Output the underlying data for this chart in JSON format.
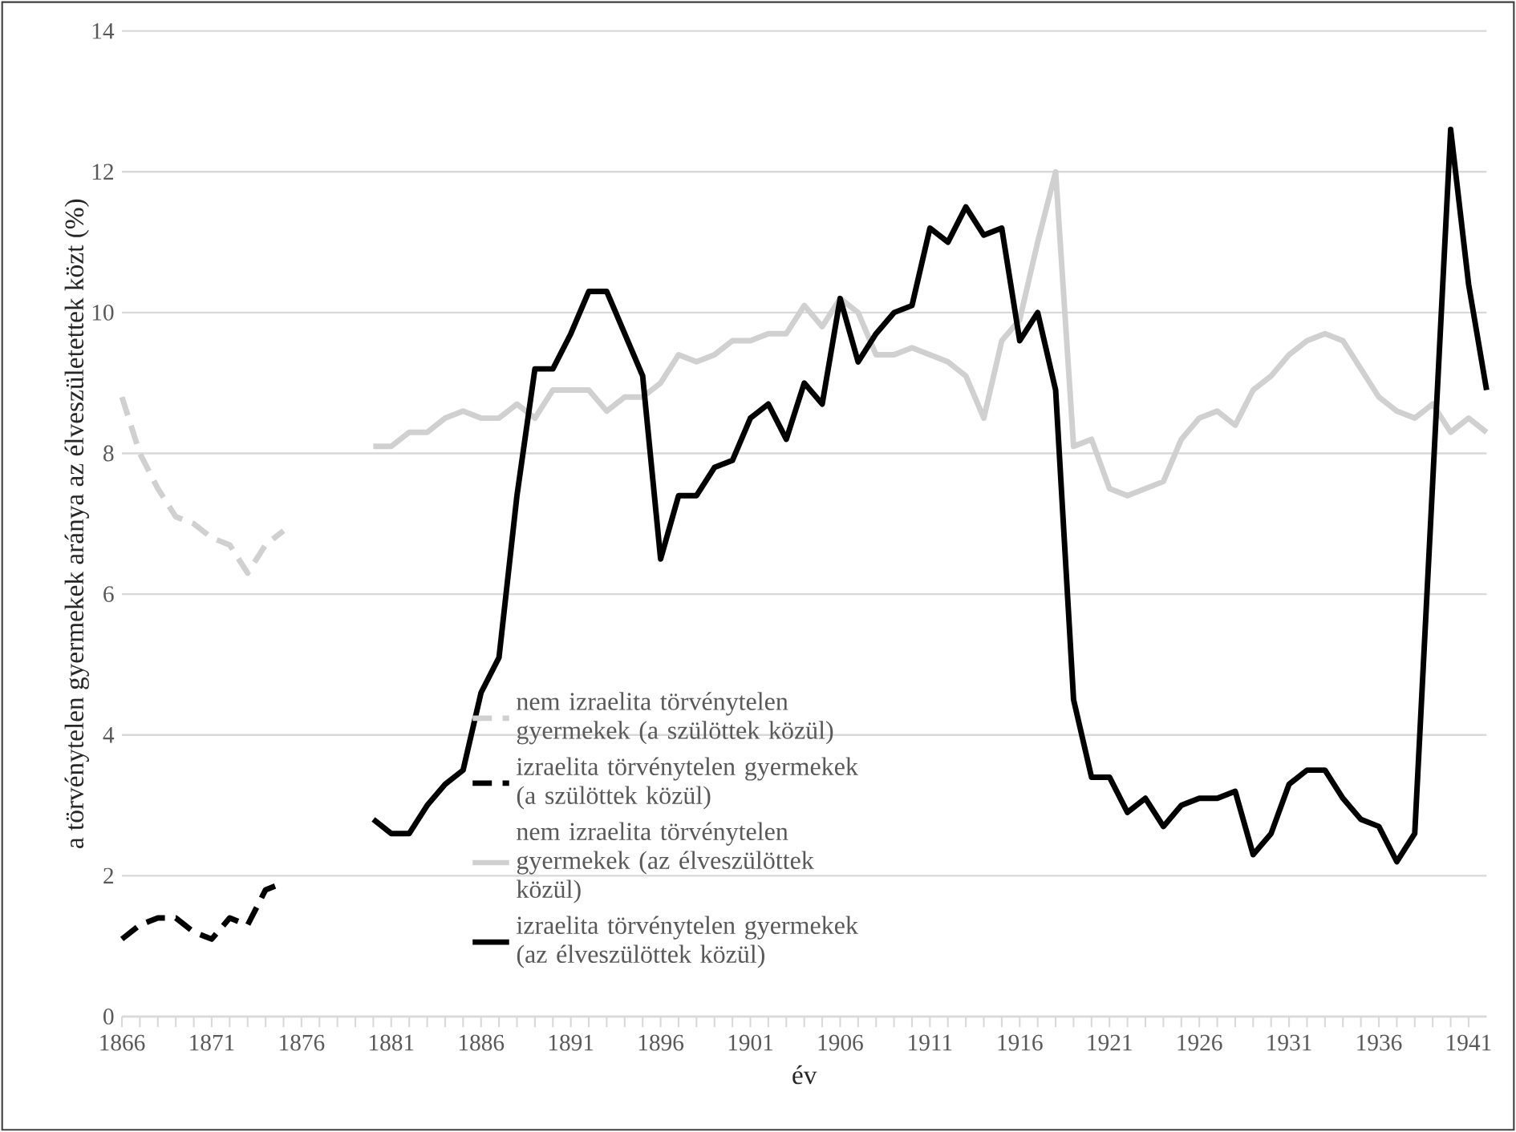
{
  "chart_data": {
    "type": "line",
    "xlabel": "év",
    "ylabel": "a törvénytelen gyermekek aránya az élveszületettek közt (%)",
    "xlim": [
      1866,
      1942
    ],
    "xticks": [
      1866,
      1871,
      1876,
      1881,
      1886,
      1891,
      1896,
      1901,
      1906,
      1911,
      1916,
      1921,
      1926,
      1931,
      1936,
      1941
    ],
    "ylim": [
      0,
      14
    ],
    "yticks": [
      0,
      2,
      4,
      6,
      8,
      10,
      12,
      14
    ],
    "grid": "y",
    "legend": "bottom",
    "marker": "none",
    "series": [
      {
        "name": "nem izraelita törvénytelen gyermekek (a szülöttek közül)",
        "color": "#d0d0d0",
        "line_style": "dashed",
        "x": [
          1866,
          1867,
          1868,
          1869,
          1870,
          1871,
          1872,
          1873,
          1874,
          1875
        ],
        "values": [
          8.8,
          8.0,
          7.5,
          7.1,
          7.0,
          6.8,
          6.7,
          6.3,
          6.7,
          6.9
        ]
      },
      {
        "name": "izraelita törvénytelen gyermekek (a szülöttek közül)",
        "color": "#000000",
        "line_style": "dashed",
        "x": [
          1866,
          1867,
          1868,
          1869,
          1870,
          1871,
          1872,
          1873,
          1874,
          1875
        ],
        "values": [
          1.1,
          1.3,
          1.4,
          1.4,
          1.2,
          1.1,
          1.4,
          1.3,
          1.8,
          1.9
        ]
      },
      {
        "name": "nem izraelita törvénytelen gyermekek (az élveszülöttek közül)",
        "color": "#d0d0d0",
        "line_style": "solid",
        "x": [
          1880,
          1881,
          1882,
          1883,
          1884,
          1885,
          1886,
          1887,
          1888,
          1889,
          1890,
          1891,
          1892,
          1893,
          1894,
          1895,
          1896,
          1897,
          1898,
          1899,
          1900,
          1901,
          1902,
          1903,
          1904,
          1905,
          1906,
          1907,
          1908,
          1909,
          1910,
          1911,
          1912,
          1913,
          1914,
          1915,
          1916,
          1917,
          1918,
          1919,
          1920,
          1921,
          1922,
          1923,
          1924,
          1925,
          1926,
          1927,
          1928,
          1929,
          1930,
          1931,
          1932,
          1933,
          1934,
          1935,
          1936,
          1937,
          1938,
          1939,
          1940,
          1941,
          1942
        ],
        "values": [
          8.1,
          8.1,
          8.3,
          8.3,
          8.5,
          8.6,
          8.5,
          8.5,
          8.7,
          8.5,
          8.9,
          8.9,
          8.9,
          8.6,
          8.8,
          8.8,
          9.0,
          9.4,
          9.3,
          9.4,
          9.6,
          9.6,
          9.7,
          9.7,
          10.1,
          9.8,
          10.2,
          10.0,
          9.4,
          9.4,
          9.5,
          9.4,
          9.3,
          9.1,
          8.5,
          9.6,
          9.9,
          11.0,
          12.0,
          8.1,
          8.2,
          7.5,
          7.4,
          7.5,
          7.6,
          8.2,
          8.5,
          8.6,
          8.4,
          8.9,
          9.1,
          9.4,
          9.6,
          9.7,
          9.6,
          9.2,
          8.8,
          8.6,
          8.5,
          8.7,
          8.3,
          8.5,
          8.3
        ]
      },
      {
        "name": "izraelita törvénytelen gyermekek (az élveszülöttek közül)",
        "color": "#000000",
        "line_style": "solid",
        "x": [
          1880,
          1881,
          1882,
          1883,
          1884,
          1885,
          1886,
          1887,
          1888,
          1889,
          1890,
          1891,
          1892,
          1893,
          1894,
          1895,
          1896,
          1897,
          1898,
          1899,
          1900,
          1901,
          1902,
          1903,
          1904,
          1905,
          1906,
          1907,
          1908,
          1909,
          1910,
          1911,
          1912,
          1913,
          1914,
          1915,
          1916,
          1917,
          1918,
          1919,
          1920,
          1921,
          1922,
          1923,
          1924,
          1925,
          1926,
          1927,
          1928,
          1929,
          1930,
          1931,
          1932,
          1933,
          1934,
          1935,
          1936,
          1937,
          1938,
          1939,
          1940,
          1941,
          1942
        ],
        "values": [
          2.8,
          2.6,
          2.6,
          3.0,
          3.3,
          3.5,
          4.6,
          5.1,
          7.4,
          9.2,
          9.2,
          9.7,
          10.3,
          10.3,
          9.7,
          9.1,
          6.5,
          7.4,
          7.4,
          7.8,
          7.9,
          8.5,
          8.7,
          8.2,
          9.0,
          8.7,
          10.2,
          9.3,
          9.7,
          10.0,
          10.1,
          11.2,
          11.0,
          11.5,
          11.1,
          11.2,
          9.6,
          10.0,
          8.9,
          4.5,
          3.4,
          3.4,
          2.9,
          3.1,
          2.7,
          3.0,
          3.1,
          3.1,
          3.2,
          2.3,
          2.6,
          3.3,
          3.5,
          3.5,
          3.1,
          2.8,
          2.7,
          2.2,
          2.6,
          7.6,
          12.6,
          10.4,
          8.9
        ]
      }
    ]
  }
}
